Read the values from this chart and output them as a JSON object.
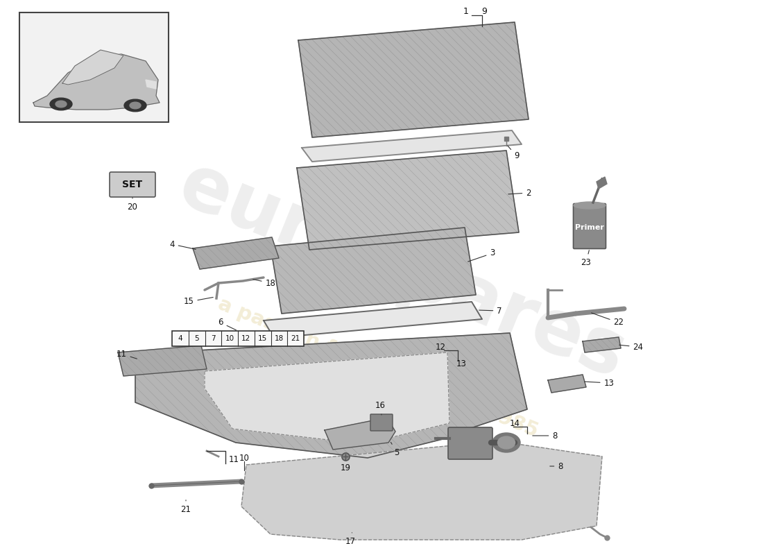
{
  "bg_color": "#ffffff",
  "fig_width": 11.0,
  "fig_height": 8.0,
  "watermark1_color": "#c8c8c8",
  "watermark1_alpha": 0.3,
  "watermark2_alpha": 0.28,
  "panel_gray": "#b8b8b8",
  "panel_gray2": "#c4c4c4",
  "edge_dark": "#555555",
  "label_color": "#111111",
  "set_label": "SET",
  "primer_label": "Primer",
  "table_nums": [
    "4",
    "5",
    "7",
    "10",
    "12",
    "15",
    "18",
    "21"
  ]
}
